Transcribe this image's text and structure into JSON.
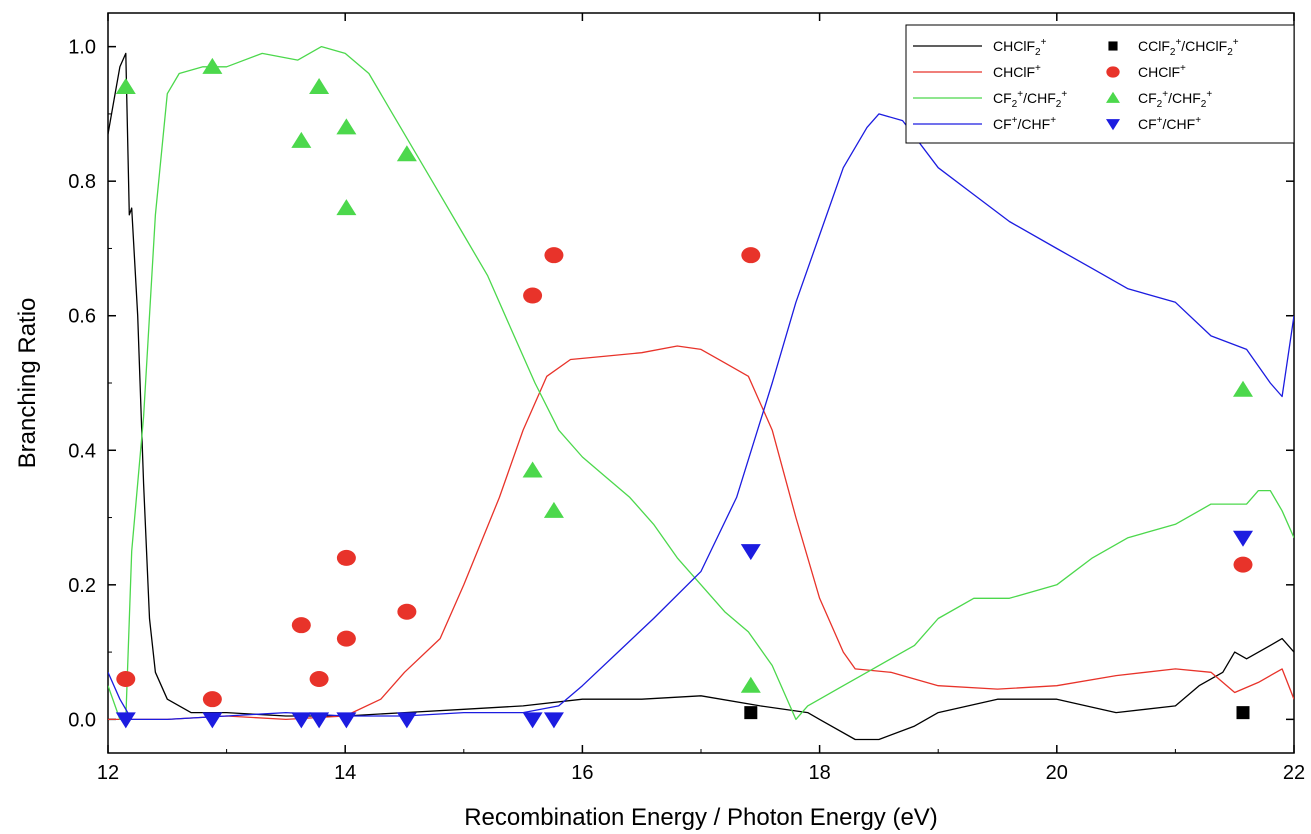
{
  "chart_data": {
    "type": "line",
    "xlabel": "Recombination Energy / Photon Energy (eV)",
    "ylabel": "Branching Ratio",
    "xlim": [
      12,
      22
    ],
    "ylim": [
      -0.05,
      1.05
    ],
    "x_ticks": [
      12,
      14,
      16,
      18,
      20,
      22
    ],
    "y_ticks": [
      0.0,
      0.2,
      0.4,
      0.6,
      0.8,
      1.0
    ],
    "x_tick_labels": [
      "12",
      "14",
      "16",
      "18",
      "20",
      "22"
    ],
    "y_tick_labels": [
      "0.0",
      "0.2",
      "0.4",
      "0.6",
      "0.8",
      "1.0"
    ],
    "legend_position": "top-right",
    "grid": false,
    "line_series": [
      {
        "name": "CHClF2+",
        "legend": {
          "base": "CHClF",
          "sub": "2",
          "sup": "+"
        },
        "color": "#000000",
        "points": [
          [
            12.0,
            0.87
          ],
          [
            12.05,
            0.92
          ],
          [
            12.1,
            0.97
          ],
          [
            12.15,
            0.99
          ],
          [
            12.18,
            0.75
          ],
          [
            12.2,
            0.76
          ],
          [
            12.25,
            0.6
          ],
          [
            12.3,
            0.35
          ],
          [
            12.35,
            0.15
          ],
          [
            12.4,
            0.07
          ],
          [
            12.5,
            0.03
          ],
          [
            12.7,
            0.01
          ],
          [
            13.0,
            0.01
          ],
          [
            13.5,
            0.005
          ],
          [
            14.0,
            0.005
          ],
          [
            14.5,
            0.01
          ],
          [
            15.0,
            0.015
          ],
          [
            15.5,
            0.02
          ],
          [
            16.0,
            0.03
          ],
          [
            16.5,
            0.03
          ],
          [
            17.0,
            0.035
          ],
          [
            17.5,
            0.02
          ],
          [
            17.9,
            0.01
          ],
          [
            18.0,
            0.0
          ],
          [
            18.3,
            -0.03
          ],
          [
            18.5,
            -0.03
          ],
          [
            18.8,
            -0.01
          ],
          [
            19.0,
            0.01
          ],
          [
            19.5,
            0.03
          ],
          [
            20.0,
            0.03
          ],
          [
            20.5,
            0.01
          ],
          [
            21.0,
            0.02
          ],
          [
            21.2,
            0.05
          ],
          [
            21.4,
            0.07
          ],
          [
            21.5,
            0.1
          ],
          [
            21.6,
            0.09
          ],
          [
            21.8,
            0.11
          ],
          [
            21.9,
            0.12
          ],
          [
            22.0,
            0.1
          ]
        ]
      },
      {
        "name": "CHClF+",
        "legend": {
          "base": "CHClF",
          "sub": "",
          "sup": "+"
        },
        "color": "#e8332a",
        "points": [
          [
            12.0,
            0.0
          ],
          [
            12.5,
            0.0
          ],
          [
            13.0,
            0.005
          ],
          [
            13.5,
            0.0
          ],
          [
            14.0,
            0.005
          ],
          [
            14.3,
            0.03
          ],
          [
            14.5,
            0.07
          ],
          [
            14.8,
            0.12
          ],
          [
            15.0,
            0.2
          ],
          [
            15.3,
            0.33
          ],
          [
            15.5,
            0.43
          ],
          [
            15.7,
            0.51
          ],
          [
            15.9,
            0.535
          ],
          [
            16.2,
            0.54
          ],
          [
            16.5,
            0.545
          ],
          [
            16.8,
            0.555
          ],
          [
            17.0,
            0.55
          ],
          [
            17.2,
            0.53
          ],
          [
            17.4,
            0.51
          ],
          [
            17.6,
            0.43
          ],
          [
            17.8,
            0.3
          ],
          [
            18.0,
            0.18
          ],
          [
            18.2,
            0.1
          ],
          [
            18.3,
            0.075
          ],
          [
            18.6,
            0.07
          ],
          [
            19.0,
            0.05
          ],
          [
            19.5,
            0.045
          ],
          [
            20.0,
            0.05
          ],
          [
            20.5,
            0.065
          ],
          [
            21.0,
            0.075
          ],
          [
            21.3,
            0.07
          ],
          [
            21.5,
            0.04
          ],
          [
            21.7,
            0.055
          ],
          [
            21.9,
            0.075
          ],
          [
            22.0,
            0.03
          ]
        ]
      },
      {
        "name": "CF2+/CHF2+",
        "legend": {
          "base": "CF",
          "sub": "2",
          "sup": "+",
          "tail_base": "/CHF",
          "tail_sub": "2",
          "tail_sup": "+"
        },
        "color": "#4cd84c",
        "points": [
          [
            12.0,
            0.05
          ],
          [
            12.1,
            0.0
          ],
          [
            12.15,
            0.0
          ],
          [
            12.2,
            0.25
          ],
          [
            12.3,
            0.45
          ],
          [
            12.4,
            0.75
          ],
          [
            12.5,
            0.93
          ],
          [
            12.6,
            0.96
          ],
          [
            12.8,
            0.97
          ],
          [
            13.0,
            0.97
          ],
          [
            13.3,
            0.99
          ],
          [
            13.6,
            0.98
          ],
          [
            13.8,
            1.0
          ],
          [
            14.0,
            0.99
          ],
          [
            14.2,
            0.96
          ],
          [
            14.4,
            0.9
          ],
          [
            14.6,
            0.84
          ],
          [
            14.8,
            0.78
          ],
          [
            15.0,
            0.72
          ],
          [
            15.2,
            0.66
          ],
          [
            15.4,
            0.58
          ],
          [
            15.6,
            0.5
          ],
          [
            15.8,
            0.43
          ],
          [
            16.0,
            0.39
          ],
          [
            16.2,
            0.36
          ],
          [
            16.4,
            0.33
          ],
          [
            16.6,
            0.29
          ],
          [
            16.8,
            0.24
          ],
          [
            17.0,
            0.2
          ],
          [
            17.2,
            0.16
          ],
          [
            17.4,
            0.13
          ],
          [
            17.6,
            0.08
          ],
          [
            17.8,
            0.0
          ],
          [
            17.9,
            0.02
          ],
          [
            18.0,
            0.03
          ],
          [
            18.2,
            0.05
          ],
          [
            18.4,
            0.07
          ],
          [
            18.6,
            0.09
          ],
          [
            18.8,
            0.11
          ],
          [
            19.0,
            0.15
          ],
          [
            19.3,
            0.18
          ],
          [
            19.6,
            0.18
          ],
          [
            20.0,
            0.2
          ],
          [
            20.3,
            0.24
          ],
          [
            20.6,
            0.27
          ],
          [
            21.0,
            0.29
          ],
          [
            21.3,
            0.32
          ],
          [
            21.6,
            0.32
          ],
          [
            21.7,
            0.34
          ],
          [
            21.8,
            0.34
          ],
          [
            21.9,
            0.31
          ],
          [
            22.0,
            0.27
          ]
        ]
      },
      {
        "name": "CF+/CHF+",
        "legend": {
          "base": "CF",
          "sub": "",
          "sup": "+",
          "tail_base": "/CHF",
          "tail_sub": "",
          "tail_sup": "+"
        },
        "color": "#1c1ce0",
        "points": [
          [
            12.0,
            0.07
          ],
          [
            12.1,
            0.03
          ],
          [
            12.2,
            0.0
          ],
          [
            12.5,
            0.0
          ],
          [
            13.0,
            0.005
          ],
          [
            13.5,
            0.01
          ],
          [
            14.0,
            0.005
          ],
          [
            14.5,
            0.005
          ],
          [
            15.0,
            0.01
          ],
          [
            15.5,
            0.01
          ],
          [
            15.8,
            0.02
          ],
          [
            16.0,
            0.05
          ],
          [
            16.3,
            0.1
          ],
          [
            16.6,
            0.15
          ],
          [
            17.0,
            0.22
          ],
          [
            17.3,
            0.33
          ],
          [
            17.6,
            0.5
          ],
          [
            17.8,
            0.62
          ],
          [
            18.0,
            0.72
          ],
          [
            18.2,
            0.82
          ],
          [
            18.4,
            0.88
          ],
          [
            18.5,
            0.9
          ],
          [
            18.7,
            0.89
          ],
          [
            19.0,
            0.82
          ],
          [
            19.3,
            0.78
          ],
          [
            19.6,
            0.74
          ],
          [
            20.0,
            0.7
          ],
          [
            20.3,
            0.67
          ],
          [
            20.6,
            0.64
          ],
          [
            21.0,
            0.62
          ],
          [
            21.3,
            0.57
          ],
          [
            21.6,
            0.55
          ],
          [
            21.8,
            0.5
          ],
          [
            21.9,
            0.48
          ],
          [
            22.0,
            0.6
          ]
        ]
      }
    ],
    "marker_series": [
      {
        "name": "CClF2+/CHClF2+",
        "legend": {
          "base": "CClF",
          "sub": "2",
          "sup": "+",
          "tail_base": "/CHClF",
          "tail_sub": "2",
          "tail_sup": "+"
        },
        "marker": "square",
        "color": "#000000",
        "points": [
          [
            17.42,
            0.01
          ],
          [
            21.57,
            0.01
          ]
        ]
      },
      {
        "name": "CHClF+",
        "legend": {
          "base": "CHClF",
          "sub": "",
          "sup": "+"
        },
        "marker": "circle",
        "color": "#e8332a",
        "points": [
          [
            12.15,
            0.06
          ],
          [
            12.88,
            0.03
          ],
          [
            13.63,
            0.14
          ],
          [
            13.78,
            0.06
          ],
          [
            14.01,
            0.24
          ],
          [
            14.01,
            0.12
          ],
          [
            14.52,
            0.16
          ],
          [
            15.58,
            0.63
          ],
          [
            15.76,
            0.69
          ],
          [
            17.42,
            0.69
          ],
          [
            21.57,
            0.23
          ]
        ]
      },
      {
        "name": "CF2+/CHF2+",
        "legend": {
          "base": "CF",
          "sub": "2",
          "sup": "+",
          "tail_base": "/CHF",
          "tail_sub": "2",
          "tail_sup": "+"
        },
        "marker": "triangle-up",
        "color": "#4cd84c",
        "points": [
          [
            12.15,
            0.94
          ],
          [
            12.88,
            0.97
          ],
          [
            13.63,
            0.86
          ],
          [
            13.78,
            0.94
          ],
          [
            14.01,
            0.88
          ],
          [
            14.01,
            0.76
          ],
          [
            14.52,
            0.84
          ],
          [
            15.58,
            0.37
          ],
          [
            15.76,
            0.31
          ],
          [
            17.42,
            0.05
          ],
          [
            21.57,
            0.49
          ]
        ]
      },
      {
        "name": "CF+/CHF+",
        "legend": {
          "base": "CF",
          "sub": "",
          "sup": "+",
          "tail_base": "/CHF",
          "tail_sub": "",
          "tail_sup": "+"
        },
        "marker": "triangle-down",
        "color": "#1c1ce0",
        "points": [
          [
            12.15,
            0.0
          ],
          [
            12.88,
            0.0
          ],
          [
            13.63,
            0.0
          ],
          [
            13.78,
            0.0
          ],
          [
            14.01,
            0.0
          ],
          [
            14.52,
            0.0
          ],
          [
            15.58,
            0.0
          ],
          [
            15.76,
            0.0
          ],
          [
            17.42,
            0.25
          ],
          [
            21.57,
            0.27
          ]
        ]
      }
    ]
  }
}
